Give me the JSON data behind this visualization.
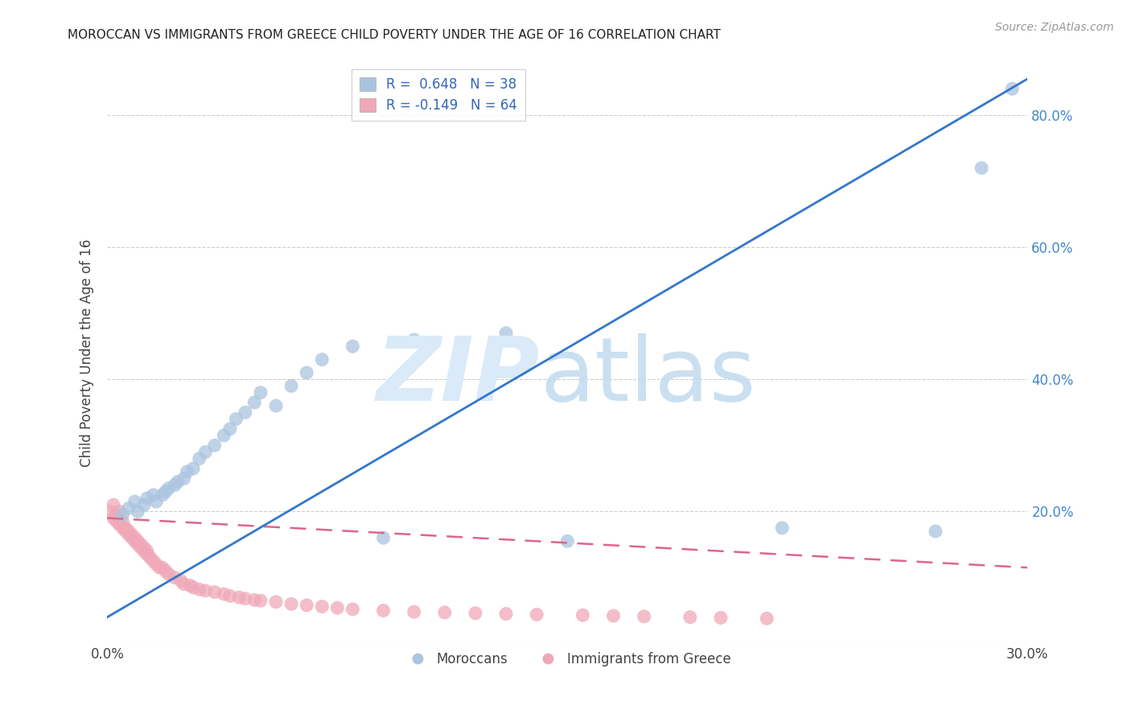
{
  "title": "MOROCCAN VS IMMIGRANTS FROM GREECE CHILD POVERTY UNDER THE AGE OF 16 CORRELATION CHART",
  "source": "Source: ZipAtlas.com",
  "ylabel": "Child Poverty Under the Age of 16",
  "xlim": [
    0.0,
    0.3
  ],
  "ylim": [
    0.0,
    0.88
  ],
  "xticks": [
    0.0,
    0.05,
    0.1,
    0.15,
    0.2,
    0.25,
    0.3
  ],
  "yticks": [
    0.0,
    0.2,
    0.4,
    0.6,
    0.8
  ],
  "moroccans_r": 0.648,
  "moroccans_n": 38,
  "greece_r": -0.149,
  "greece_n": 64,
  "blue_color": "#aac4e0",
  "pink_color": "#f0a8b8",
  "blue_line_color": "#3377cc",
  "pink_line_color": "#dd6688",
  "legend_label_blue": "Moroccans",
  "legend_label_pink": "Immigrants from Greece",
  "moroccans_x": [
    0.005,
    0.007,
    0.009,
    0.01,
    0.012,
    0.013,
    0.015,
    0.016,
    0.018,
    0.019,
    0.02,
    0.022,
    0.023,
    0.025,
    0.026,
    0.028,
    0.03,
    0.032,
    0.035,
    0.038,
    0.04,
    0.042,
    0.045,
    0.048,
    0.05,
    0.055,
    0.06,
    0.065,
    0.07,
    0.08,
    0.09,
    0.1,
    0.13,
    0.15,
    0.22,
    0.27,
    0.285,
    0.295
  ],
  "moroccans_y": [
    0.195,
    0.205,
    0.215,
    0.2,
    0.21,
    0.22,
    0.225,
    0.215,
    0.225,
    0.23,
    0.235,
    0.24,
    0.245,
    0.25,
    0.26,
    0.265,
    0.28,
    0.29,
    0.3,
    0.315,
    0.325,
    0.34,
    0.35,
    0.365,
    0.38,
    0.36,
    0.39,
    0.41,
    0.43,
    0.45,
    0.16,
    0.46,
    0.47,
    0.155,
    0.175,
    0.17,
    0.72,
    0.84
  ],
  "greece_x": [
    0.001,
    0.002,
    0.002,
    0.003,
    0.003,
    0.004,
    0.004,
    0.005,
    0.005,
    0.006,
    0.006,
    0.007,
    0.007,
    0.008,
    0.008,
    0.009,
    0.009,
    0.01,
    0.01,
    0.011,
    0.011,
    0.012,
    0.012,
    0.013,
    0.013,
    0.014,
    0.015,
    0.016,
    0.017,
    0.018,
    0.019,
    0.02,
    0.022,
    0.024,
    0.025,
    0.027,
    0.028,
    0.03,
    0.032,
    0.035,
    0.038,
    0.04,
    0.043,
    0.045,
    0.048,
    0.05,
    0.055,
    0.06,
    0.065,
    0.07,
    0.075,
    0.08,
    0.09,
    0.1,
    0.11,
    0.12,
    0.13,
    0.14,
    0.155,
    0.165,
    0.175,
    0.19,
    0.2,
    0.215
  ],
  "greece_y": [
    0.2,
    0.19,
    0.21,
    0.185,
    0.195,
    0.18,
    0.2,
    0.175,
    0.185,
    0.17,
    0.175,
    0.165,
    0.17,
    0.16,
    0.165,
    0.155,
    0.16,
    0.15,
    0.155,
    0.145,
    0.15,
    0.14,
    0.145,
    0.135,
    0.14,
    0.13,
    0.125,
    0.12,
    0.115,
    0.115,
    0.11,
    0.105,
    0.1,
    0.095,
    0.09,
    0.088,
    0.085,
    0.082,
    0.08,
    0.078,
    0.075,
    0.072,
    0.07,
    0.068,
    0.066,
    0.065,
    0.063,
    0.06,
    0.058,
    0.056,
    0.054,
    0.052,
    0.05,
    0.048,
    0.047,
    0.046,
    0.045,
    0.044,
    0.043,
    0.042,
    0.041,
    0.04,
    0.039,
    0.038
  ],
  "blue_line_x": [
    0.0,
    0.3
  ],
  "blue_line_y": [
    0.04,
    0.855
  ],
  "pink_line_x": [
    0.0,
    0.3
  ],
  "pink_line_y": [
    0.19,
    0.115
  ]
}
